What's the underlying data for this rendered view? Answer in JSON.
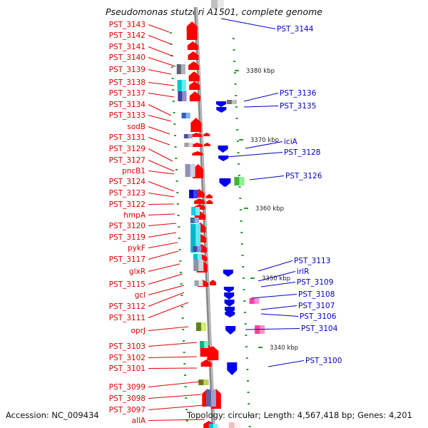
{
  "title": "Pseudomonas stutzeri A1501, complete genome",
  "accession": "Accession: NC_009434",
  "topology": "Topology: circular; Length: 4,567,418 bp; Genes: 4,201",
  "colors": {
    "left_label": "#e00000",
    "right_label": "#0000c8",
    "forward_gene": "#ff0000",
    "reverse_gene": "#0000ee",
    "backbone": "#8a8a8a"
  },
  "scale_marks": [
    "3380 kbp",
    "3370 kbp",
    "3360 kbp",
    "3350 kbp",
    "3340 kbp"
  ],
  "left_labels": [
    "PST_3143",
    "PST_3142",
    "PST_3141",
    "PST_3140",
    "PST_3139",
    "PST_3138",
    "PST_3137",
    "PST_3134",
    "PST_3133",
    "sodB",
    "PST_3131",
    "PST_3129",
    "PST_3127",
    "pncB1",
    "PST_3124",
    "PST_3123",
    "PST_3122",
    "hmpA",
    "PST_3120",
    "PST_3119",
    "pykF",
    "PST_3117",
    "glxR",
    "PST_3115",
    "gcl",
    "PST_3112",
    "PST_3111",
    "oprJ",
    "PST_3103",
    "PST_3102",
    "PST_3101",
    "PST_3099",
    "PST_3098",
    "PST_3097",
    "allA"
  ],
  "right_labels": [
    "PST_3144",
    "PST_3136",
    "PST_3135",
    "iciA",
    "PST_3128",
    "PST_3126",
    "PST_3113",
    "irlR",
    "PST_3109",
    "PST_3108",
    "PST_3107",
    "PST_3106",
    "PST_3104",
    "PST_3100"
  ]
}
